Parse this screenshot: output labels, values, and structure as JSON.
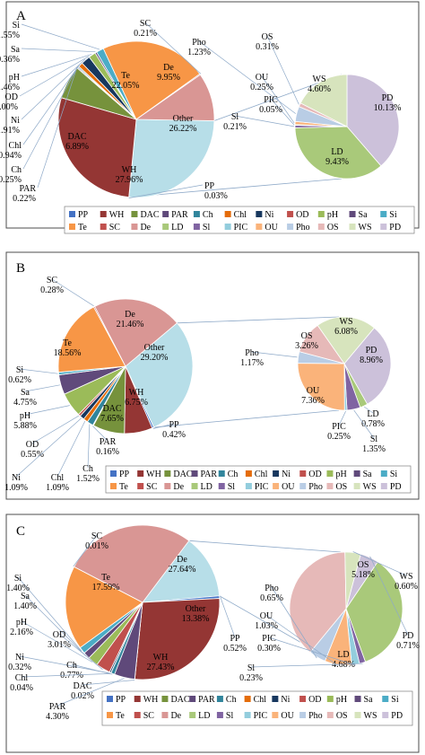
{
  "legend_order": [
    "PP",
    "WH",
    "DAC",
    "PAR",
    "Ch",
    "Chl",
    "Ni",
    "OD",
    "pH",
    "Sa",
    "Si",
    "Te",
    "SC",
    "De",
    "LD",
    "Sl",
    "PIC",
    "OU",
    "Pho",
    "OS",
    "WS",
    "PD"
  ],
  "legend_colors": {
    "PP": "#4472c4",
    "WH": "#943634",
    "DAC": "#76923c",
    "PAR": "#5f497a",
    "Ch": "#31859c",
    "Chl": "#e46c0a",
    "Ni": "#17375e",
    "OD": "#c0504d",
    "pH": "#9bbb59",
    "Sa": "#604a7b",
    "Si": "#4bacc6",
    "Te": "#f79646",
    "SC": "#c0504d",
    "De": "#d99694",
    "LD": "#a9c97a",
    "Sl": "#8064a2",
    "PIC": "#93cddd",
    "OU": "#fab37a",
    "Pho": "#b9cde5",
    "OS": "#e6b9b8",
    "WS": "#d7e4bd",
    "PD": "#ccc1da"
  },
  "chart_data": [
    {
      "type": "pie",
      "panel_label": "A",
      "main_slices": [
        {
          "name": "Other",
          "value": 26.22
        },
        {
          "name": "PP",
          "value": 0.03
        },
        {
          "name": "WH",
          "value": 27.96
        },
        {
          "name": "DAC",
          "value": 6.89
        },
        {
          "name": "PAR",
          "value": 0.22
        },
        {
          "name": "Ch",
          "value": 0.25
        },
        {
          "name": "Chl",
          "value": 0.94
        },
        {
          "name": "Ni",
          "value": 1.91
        },
        {
          "name": "OD",
          "value": 0.0
        },
        {
          "name": "pH",
          "value": 1.46
        },
        {
          "name": "Sa",
          "value": 0.36
        },
        {
          "name": "Si",
          "value": 1.55
        },
        {
          "name": "Te",
          "value": 22.05
        },
        {
          "name": "SC",
          "value": 0.21
        },
        {
          "name": "De",
          "value": 9.95
        }
      ],
      "other_slices": [
        {
          "name": "PD",
          "value": 10.13
        },
        {
          "name": "LD",
          "value": 9.43
        },
        {
          "name": "Sl",
          "value": 0.21
        },
        {
          "name": "PIC",
          "value": 0.05
        },
        {
          "name": "OU",
          "value": 0.25
        },
        {
          "name": "Pho",
          "value": 1.23
        },
        {
          "name": "OS",
          "value": 0.31
        },
        {
          "name": "WS",
          "value": 4.6
        }
      ]
    },
    {
      "type": "pie",
      "panel_label": "B",
      "main_slices": [
        {
          "name": "Other",
          "value": 29.2
        },
        {
          "name": "PP",
          "value": 0.42
        },
        {
          "name": "WH",
          "value": 6.75
        },
        {
          "name": "DAC",
          "value": 7.65
        },
        {
          "name": "PAR",
          "value": 0.16
        },
        {
          "name": "Ch",
          "value": 1.52
        },
        {
          "name": "Chl",
          "value": 1.09
        },
        {
          "name": "Ni",
          "value": 1.09
        },
        {
          "name": "OD",
          "value": 0.55
        },
        {
          "name": "pH",
          "value": 5.88
        },
        {
          "name": "Sa",
          "value": 4.75
        },
        {
          "name": "Si",
          "value": 0.62
        },
        {
          "name": "Te",
          "value": 18.56
        },
        {
          "name": "SC",
          "value": 0.28
        },
        {
          "name": "De",
          "value": 21.46
        }
      ],
      "other_slices": [
        {
          "name": "PD",
          "value": 8.96
        },
        {
          "name": "LD",
          "value": 0.78
        },
        {
          "name": "Sl",
          "value": 1.35
        },
        {
          "name": "PIC",
          "value": 0.25
        },
        {
          "name": "OU",
          "value": 7.36
        },
        {
          "name": "Pho",
          "value": 1.17
        },
        {
          "name": "OS",
          "value": 3.26
        },
        {
          "name": "WS",
          "value": 6.08
        }
      ]
    },
    {
      "type": "pie",
      "panel_label": "C",
      "main_slices": [
        {
          "name": "Other",
          "value": 13.38
        },
        {
          "name": "PP",
          "value": 0.52
        },
        {
          "name": "WH",
          "value": 27.43
        },
        {
          "name": "DAC",
          "value": 0.02
        },
        {
          "name": "PAR",
          "value": 4.3
        },
        {
          "name": "Ch",
          "value": 0.77
        },
        {
          "name": "Chl",
          "value": 0.04
        },
        {
          "name": "Ni",
          "value": 0.32
        },
        {
          "name": "OD",
          "value": 3.01
        },
        {
          "name": "pH",
          "value": 2.16
        },
        {
          "name": "Sa",
          "value": 1.4
        },
        {
          "name": "Si",
          "value": 1.4
        },
        {
          "name": "Te",
          "value": 17.59
        },
        {
          "name": "SC",
          "value": 0.01
        },
        {
          "name": "De",
          "value": 27.64
        }
      ],
      "other_slices": [
        {
          "name": "PD",
          "value": 0.71
        },
        {
          "name": "LD",
          "value": 4.68
        },
        {
          "name": "Sl",
          "value": 0.23
        },
        {
          "name": "PIC",
          "value": 0.3
        },
        {
          "name": "OU",
          "value": 1.03
        },
        {
          "name": "Pho",
          "value": 0.65
        },
        {
          "name": "OS",
          "value": 5.18
        },
        {
          "name": "WS",
          "value": 0.6
        }
      ]
    }
  ]
}
